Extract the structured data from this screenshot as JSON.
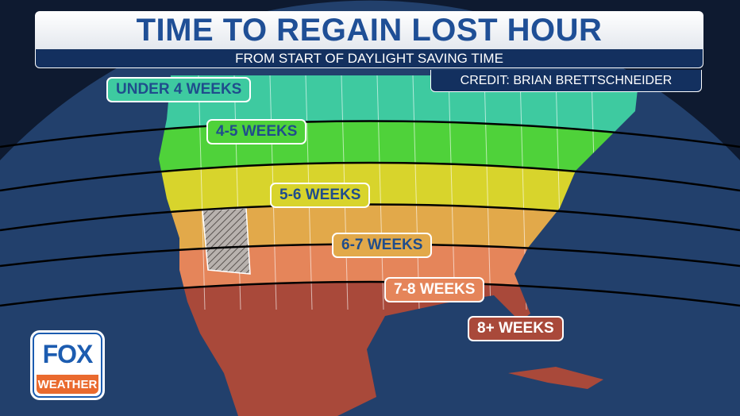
{
  "header": {
    "title": "TIME TO REGAIN LOST HOUR",
    "subtitle": "FROM START OF DAYLIGHT SAVING TIME",
    "credit": "CREDIT: BRIAN BRETTSCHNEIDER"
  },
  "zones": [
    {
      "label": "UNDER 4 WEEKS",
      "color": "#3ecaa0"
    },
    {
      "label": "4-5 WEEKS",
      "color": "#4fd23a"
    },
    {
      "label": "5-6 WEEKS",
      "color": "#d8d42c"
    },
    {
      "label": "6-7 WEEKS",
      "color": "#e2a94a"
    },
    {
      "label": "7-8 WEEKS",
      "color": "#e5855a"
    },
    {
      "label": "8+ WEEKS",
      "color": "#a9493a"
    }
  ],
  "colors": {
    "background": "#0e1a30",
    "globe": "#22406c",
    "title_text": "#1f4f96",
    "banner": "#13305f",
    "arizona_hatch": "#a9a3a0"
  },
  "logo": {
    "line1": "FOX",
    "line2": "WEATHER"
  }
}
